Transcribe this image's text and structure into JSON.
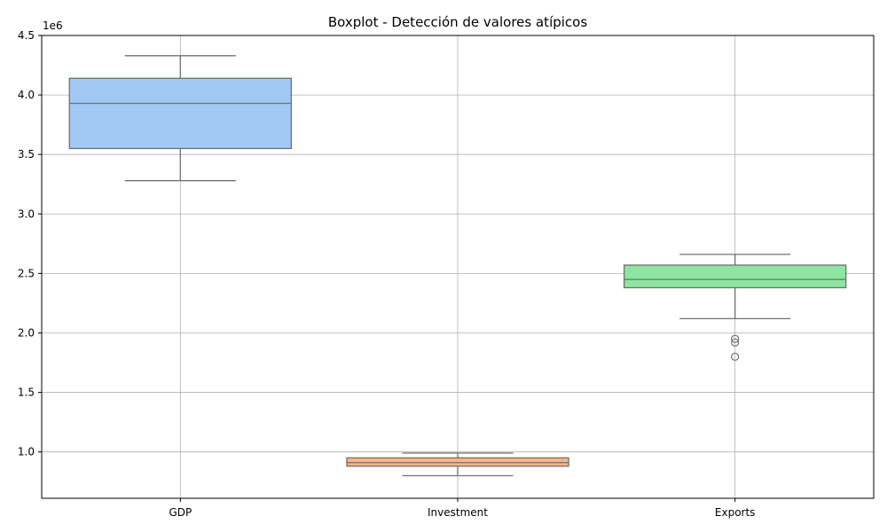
{
  "chart_data": {
    "type": "boxplot",
    "title": "Boxplot - Detección de valores atípicos",
    "xlabel": "",
    "ylabel": "",
    "y_offset_label": "1e6",
    "ylim": [
      0.61,
      4.5
    ],
    "y_ticks": [
      1.0,
      1.5,
      2.0,
      2.5,
      3.0,
      3.5,
      4.0,
      4.5
    ],
    "y_tick_labels": [
      "1.0",
      "1.5",
      "2.0",
      "2.5",
      "3.0",
      "3.5",
      "4.0",
      "4.5"
    ],
    "grid": true,
    "categories": [
      "GDP",
      "Investment",
      "Exports"
    ],
    "boxes": [
      {
        "category": "GDP",
        "whisker_low": 3.28,
        "q1": 3.55,
        "median": 3.93,
        "q3": 4.14,
        "whisker_high": 4.33,
        "outliers": [],
        "color": "#a1c9f4"
      },
      {
        "category": "Investment",
        "whisker_low": 0.8,
        "q1": 0.88,
        "median": 0.91,
        "q3": 0.95,
        "whisker_high": 0.99,
        "outliers": [],
        "color": "#ffb482"
      },
      {
        "category": "Exports",
        "whisker_low": 2.12,
        "q1": 2.38,
        "median": 2.45,
        "q3": 2.57,
        "whisker_high": 2.66,
        "outliers": [
          1.95,
          1.92,
          1.8
        ],
        "color": "#8de5a1"
      }
    ],
    "colors": {
      "box_edge": "#707070",
      "grid": "#b0b0b0",
      "axis": "#000000"
    }
  }
}
